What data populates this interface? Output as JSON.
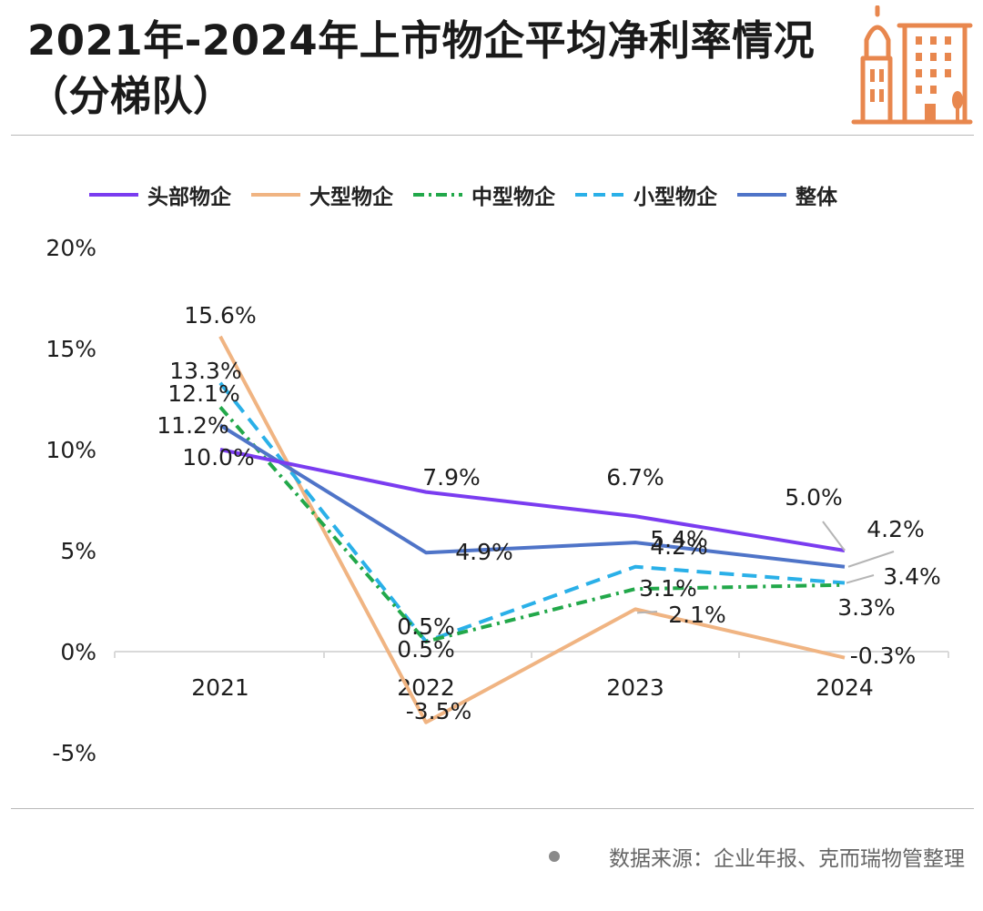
{
  "title": "2021年-2024年上市物企平均净利率情况（分梯队）",
  "source": "数据来源：企业年报、克而瑞物管整理",
  "colors": {
    "头部物企": "#7a3cf0",
    "大型物企": "#f0b482",
    "中型物企": "#22a84a",
    "小型物企": "#2ab0e8",
    "整体": "#4f74c8"
  },
  "chart_data": {
    "type": "line",
    "title": "2021年-2024年上市物企平均净利率情况（分梯队）",
    "xlabel": "",
    "ylabel": "",
    "categories": [
      "2021",
      "2022",
      "2023",
      "2024"
    ],
    "y_ticks": [
      "20%",
      "15%",
      "10%",
      "5%",
      "0%",
      "-5%"
    ],
    "ylim": [
      -5,
      20
    ],
    "grid": false,
    "legend": "top",
    "series": [
      {
        "name": "头部物企",
        "values": [
          10.0,
          7.9,
          6.7,
          5.0
        ],
        "labels": [
          "10.0%",
          "7.9%",
          "6.7%",
          "5.0%"
        ],
        "color": "#7a3cf0",
        "dash": "solid"
      },
      {
        "name": "大型物企",
        "values": [
          15.6,
          -3.5,
          2.1,
          -0.3
        ],
        "labels": [
          "15.6%",
          "-3.5%",
          "2.1%",
          "-0.3%"
        ],
        "color": "#f0b482",
        "dash": "solid"
      },
      {
        "name": "中型物企",
        "values": [
          12.1,
          0.5,
          3.1,
          3.3
        ],
        "labels": [
          "12.1%",
          "0.5%",
          "3.1%",
          "3.3%"
        ],
        "color": "#22a84a",
        "dash": "dotdash"
      },
      {
        "name": "小型物企",
        "values": [
          13.3,
          0.5,
          4.2,
          3.4
        ],
        "labels": [
          "13.3%",
          "0.5%",
          "4.2%",
          "3.4%"
        ],
        "color": "#2ab0e8",
        "dash": "dash"
      },
      {
        "name": "整体",
        "values": [
          11.2,
          4.9,
          5.4,
          4.2
        ],
        "labels": [
          "11.2%",
          "4.9%",
          "5.4%",
          "4.2%"
        ],
        "color": "#4f74c8",
        "dash": "solid"
      }
    ]
  }
}
